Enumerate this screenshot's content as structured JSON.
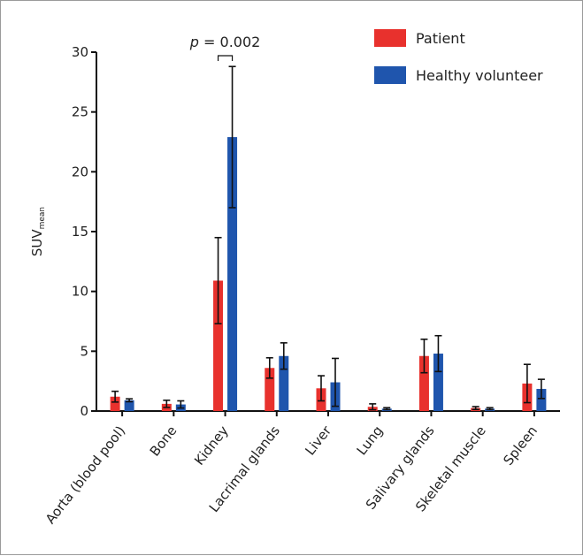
{
  "chart_data": {
    "type": "bar",
    "categories": [
      "Aorta (blood pool)",
      "Bone",
      "Kidney",
      "Lacrimal glands",
      "Liver",
      "Lung",
      "Salivary glands",
      "Skeletal muscle",
      "Spleen"
    ],
    "series": [
      {
        "name": "Patient",
        "color": "#e8312d",
        "values": [
          1.2,
          0.6,
          10.9,
          3.6,
          1.9,
          0.35,
          4.6,
          0.25,
          2.3
        ],
        "error": [
          0.45,
          0.3,
          3.6,
          0.85,
          1.05,
          0.25,
          1.4,
          0.12,
          1.6
        ]
      },
      {
        "name": "Healthy volunteer",
        "color": "#1f55ad",
        "values": [
          0.9,
          0.55,
          22.9,
          4.6,
          2.4,
          0.2,
          4.8,
          0.2,
          1.85
        ],
        "error": [
          0.12,
          0.3,
          5.9,
          1.1,
          2.0,
          0.08,
          1.5,
          0.08,
          0.8
        ]
      }
    ],
    "ylabel_main": "SUV",
    "ylabel_sub": "mean",
    "ylim": [
      0,
      30
    ],
    "yticks": [
      "0",
      "5",
      "10",
      "15",
      "20",
      "25",
      "30"
    ],
    "annotation": {
      "italic": "p",
      "rest": " = 0.002",
      "category": "Kidney"
    },
    "legend_position": "top-right",
    "grid": false
  }
}
